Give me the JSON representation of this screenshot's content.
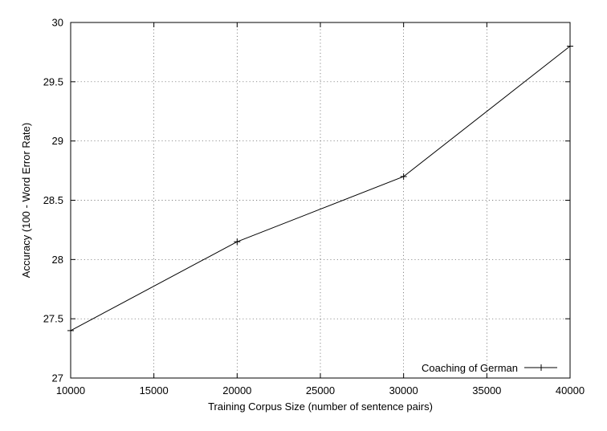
{
  "chart_data": {
    "type": "line",
    "xlabel": "Training Corpus Size (number of sentence pairs)",
    "ylabel": "Accuracy (100 - Word Error Rate)",
    "xlim": [
      10000,
      40000
    ],
    "ylim": [
      27,
      30
    ],
    "x_ticks": [
      10000,
      15000,
      20000,
      25000,
      30000,
      35000,
      40000
    ],
    "x_tick_labels": [
      "10000",
      "15000",
      "20000",
      "25000",
      "30000",
      "35000",
      "40000"
    ],
    "y_ticks": [
      27,
      27.5,
      28,
      28.5,
      29,
      29.5,
      30
    ],
    "y_tick_labels": [
      "27",
      "27.5",
      "28",
      "28.5",
      "29",
      "29.5",
      "30"
    ],
    "grid": true,
    "legend_position": "bottom-right",
    "series": [
      {
        "name": "Coaching of German",
        "marker": "plus",
        "color": "#000000",
        "x": [
          10000,
          20000,
          30000,
          40000
        ],
        "y": [
          27.4,
          28.15,
          28.7,
          29.8
        ]
      }
    ]
  }
}
